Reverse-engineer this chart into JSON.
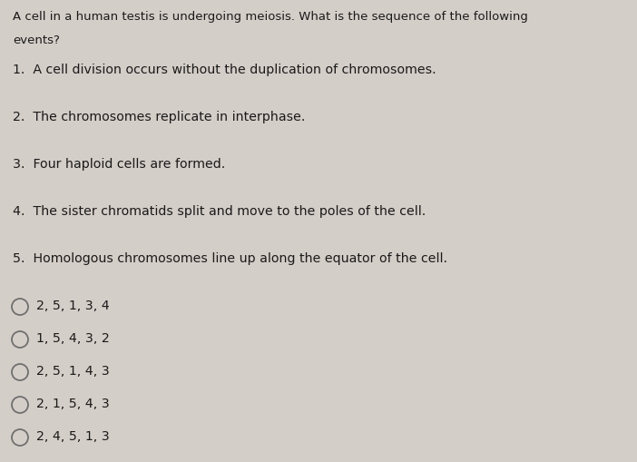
{
  "background_color": "#d4cec8",
  "text_color": "#1a1a1a",
  "title_lines": [
    "A cell in a human testis is undergoing meiosis. What is the sequence of the following",
    "events?"
  ],
  "numbered_items": [
    "1.  A cell division occurs without the duplication of chromosomes.",
    "2.  The chromosomes replicate in interphase.",
    "3.  Four haploid cells are formed.",
    "4.  The sister chromatids split and move to the poles of the cell.",
    "5.  Homologous chromosomes line up along the equator of the cell."
  ],
  "options": [
    "2, 5, 1, 3, 4",
    "1, 5, 4, 3, 2",
    "2, 5, 1, 4, 3",
    "2, 1, 5, 4, 3",
    "2, 4, 5, 1, 3"
  ],
  "title_fontsize": 9.5,
  "item_fontsize": 10.2,
  "option_fontsize": 10.2,
  "circle_color": "#707070"
}
